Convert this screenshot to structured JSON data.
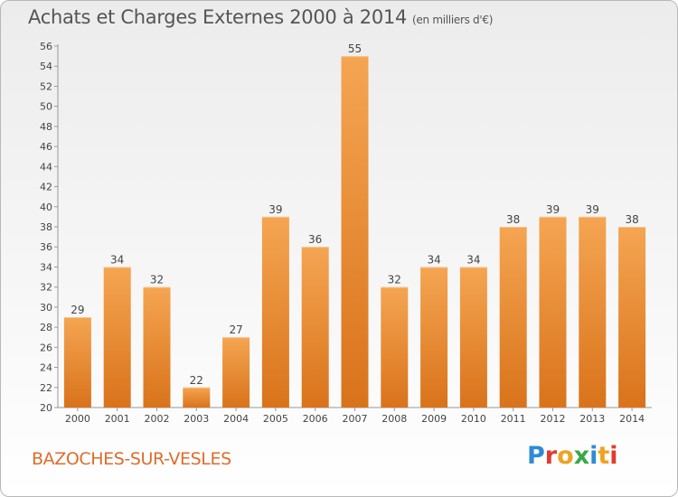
{
  "header": {
    "title": "Achats et Charges Externes 2000 à 2014",
    "unit": "(en milliers d'€)"
  },
  "footer": {
    "commune": "BAZOCHES-SUR-VESLES",
    "logo": "Proxiti"
  },
  "colors": {
    "bar_light": "#f5a552",
    "bar_dark": "#d9731b",
    "city_text": "#e06c2a",
    "logo_letters": [
      "#2e8bd6",
      "#e23b2e",
      "#f0a221",
      "#3aa84a",
      "#2e8bd6",
      "#f0a221",
      "#e23b2e"
    ]
  },
  "chart_data": {
    "type": "bar",
    "title": "Achats et Charges Externes 2000 à 2014",
    "subtitle": "(en milliers d'€)",
    "categories": [
      "2000",
      "2001",
      "2002",
      "2003",
      "2004",
      "2005",
      "2006",
      "2007",
      "2008",
      "2009",
      "2010",
      "2011",
      "2012",
      "2013",
      "2014"
    ],
    "values": [
      29,
      34,
      32,
      22,
      27,
      39,
      36,
      55,
      32,
      34,
      34,
      38,
      39,
      39,
      38
    ],
    "xlabel": "",
    "ylabel": "",
    "ylim": [
      20,
      56
    ],
    "yticks": [
      20,
      22,
      24,
      26,
      28,
      30,
      32,
      34,
      36,
      38,
      40,
      42,
      44,
      46,
      48,
      50,
      52,
      54,
      56
    ],
    "grid": false,
    "data_labels": true
  }
}
